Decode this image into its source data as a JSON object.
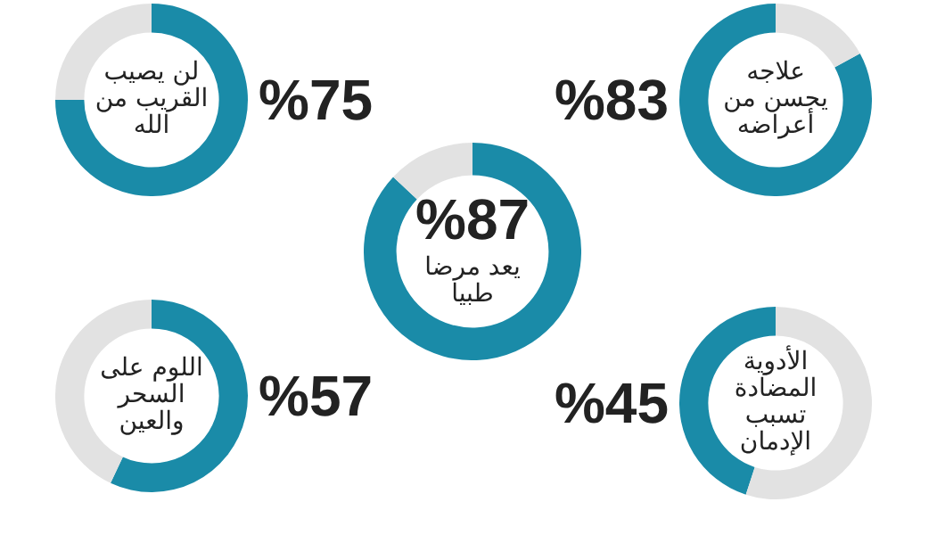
{
  "chart_data": [
    {
      "type": "donut",
      "title": "لن يصيب القريب من الله",
      "categories": [
        null,
        null
      ],
      "values": [
        75,
        25
      ],
      "colors": [
        "#1a8ba8",
        "#e2e2e2"
      ],
      "value_labels": [
        "%75",
        null
      ]
    },
    {
      "type": "donut",
      "title": "علاجه يحسن من أعراضه",
      "categories": [
        null,
        null
      ],
      "values": [
        83,
        17
      ],
      "colors": [
        "#1a8ba8",
        "#e2e2e2"
      ],
      "value_labels": [
        "%83",
        null
      ]
    },
    {
      "type": "donut",
      "title": "يعد مرضا طبيا",
      "categories": [
        null,
        null
      ],
      "values": [
        87,
        13
      ],
      "colors": [
        "#1a8ba8",
        "#e2e2e2"
      ],
      "value_labels": [
        "%87",
        null
      ]
    },
    {
      "type": "donut",
      "title": "اللوم على السحر والعين",
      "categories": [
        null,
        null
      ],
      "values": [
        57,
        43
      ],
      "colors": [
        "#1a8ba8",
        "#e2e2e2"
      ],
      "value_labels": [
        "%57",
        null
      ]
    },
    {
      "type": "donut",
      "title": "الأدوية المضادة تسبب الإدمان",
      "categories": [
        null,
        null
      ],
      "values": [
        45,
        55
      ],
      "colors": [
        "#1a8ba8",
        "#e2e2e2"
      ],
      "value_labels": [
        "%45",
        null
      ]
    }
  ]
}
